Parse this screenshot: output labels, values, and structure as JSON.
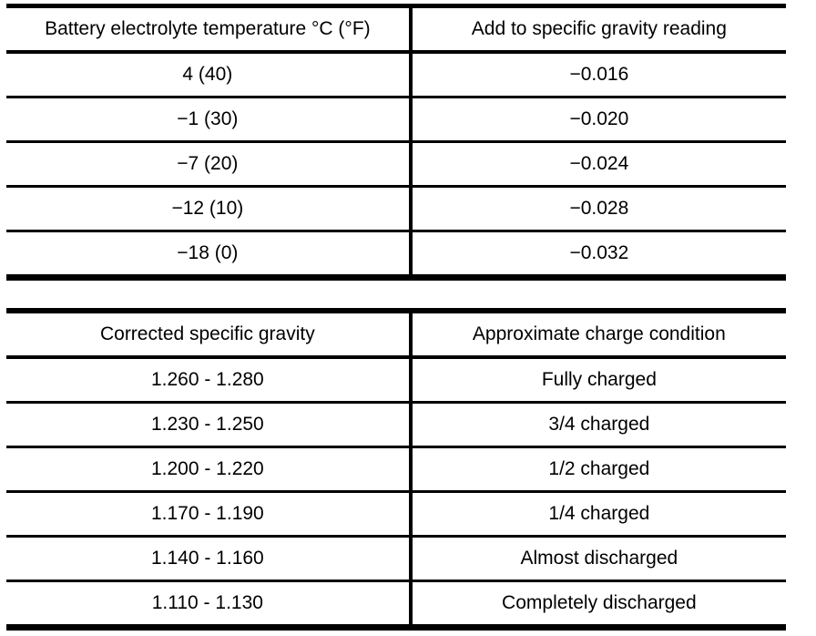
{
  "page": {
    "background_color": "#ffffff",
    "text_color": "#000000",
    "border_color": "#000000"
  },
  "temperature_table": {
    "headers": [
      "Battery electrolyte temperature °C (°F)",
      "Add to specific gravity reading"
    ],
    "rows": [
      [
        "4 (40)",
        "−0.016"
      ],
      [
        "−1 (30)",
        "−0.020"
      ],
      [
        "−7 (20)",
        "−0.024"
      ],
      [
        "−12 (10)",
        "−0.028"
      ],
      [
        "−18 (0)",
        "−0.032"
      ]
    ]
  },
  "charge_table": {
    "headers": [
      "Corrected specific gravity",
      "Approximate charge condition"
    ],
    "rows": [
      [
        "1.260 - 1.280",
        "Fully charged"
      ],
      [
        "1.230 - 1.250",
        "3/4 charged"
      ],
      [
        "1.200 - 1.220",
        "1/2 charged"
      ],
      [
        "1.170 - 1.190",
        "1/4 charged"
      ],
      [
        "1.140 - 1.160",
        "Almost discharged"
      ],
      [
        "1.110 - 1.130",
        "Completely discharged"
      ]
    ]
  }
}
